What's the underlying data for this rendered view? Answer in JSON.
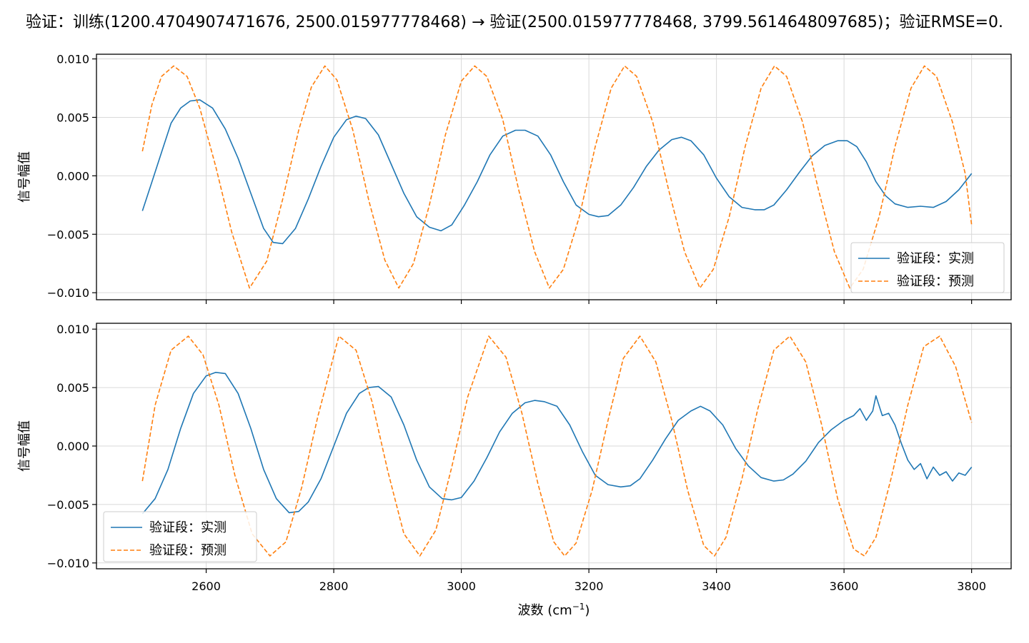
{
  "title": "验证：训练(1200.4704907471676, 2500.015977778468) → 验证(2500.015977778468, 3799.5614648097685)；验证RMSE=0.",
  "colors": {
    "measured": "#1f77b4",
    "predicted": "#ff7f0e",
    "grid": "#d9d9d9",
    "axis": "#000000"
  },
  "chart_data": [
    {
      "type": "line",
      "ylabel": "信号幅值",
      "xlim": [
        2428,
        3862
      ],
      "ylim": [
        -0.0106,
        0.0104
      ],
      "yticks": [
        -0.01,
        -0.005,
        0.0,
        0.005,
        0.01
      ],
      "ytick_labels": [
        "−0.010",
        "−0.005",
        "0.000",
        "0.005",
        "0.010"
      ],
      "xticks": [
        2600,
        2800,
        3000,
        3200,
        3400,
        3600,
        3800
      ],
      "grid": true,
      "legend_position": "lower-right",
      "series": [
        {
          "name": "验证段：实测",
          "style": "solid",
          "x": [
            2500,
            2515,
            2530,
            2545,
            2560,
            2575,
            2590,
            2610,
            2630,
            2650,
            2670,
            2690,
            2705,
            2720,
            2740,
            2760,
            2780,
            2800,
            2820,
            2835,
            2850,
            2870,
            2890,
            2910,
            2930,
            2950,
            2968,
            2985,
            3005,
            3025,
            3045,
            3065,
            3085,
            3100,
            3120,
            3140,
            3160,
            3180,
            3200,
            3215,
            3230,
            3250,
            3270,
            3290,
            3310,
            3330,
            3345,
            3360,
            3380,
            3400,
            3420,
            3440,
            3460,
            3475,
            3490,
            3510,
            3530,
            3550,
            3570,
            3590,
            3605,
            3620,
            3635,
            3650,
            3665,
            3680,
            3700,
            3720,
            3740,
            3760,
            3780,
            3800
          ],
          "y": [
            -0.003,
            -0.0005,
            0.002,
            0.0045,
            0.0058,
            0.0064,
            0.0065,
            0.0058,
            0.004,
            0.0015,
            -0.0015,
            -0.0045,
            -0.0057,
            -0.0058,
            -0.0045,
            -0.002,
            0.0008,
            0.0033,
            0.0048,
            0.0051,
            0.0049,
            0.0035,
            0.001,
            -0.0015,
            -0.0035,
            -0.0044,
            -0.0047,
            -0.0042,
            -0.0025,
            -0.0005,
            0.0018,
            0.0034,
            0.0039,
            0.0039,
            0.0034,
            0.0018,
            -0.0005,
            -0.0025,
            -0.0033,
            -0.0035,
            -0.0034,
            -0.0025,
            -0.001,
            0.0008,
            0.0022,
            0.0031,
            0.0033,
            0.003,
            0.0018,
            -0.0002,
            -0.0018,
            -0.0027,
            -0.0029,
            -0.0029,
            -0.0025,
            -0.0012,
            0.0003,
            0.0017,
            0.0026,
            0.003,
            0.003,
            0.0025,
            0.0012,
            -0.0005,
            -0.0017,
            -0.0024,
            -0.0027,
            -0.0026,
            -0.0027,
            -0.0022,
            -0.0012,
            0.0002
          ]
        },
        {
          "name": "验证段：预测",
          "style": "dashed",
          "x": [
            2500,
            2515,
            2530,
            2549,
            2570,
            2590,
            2615,
            2640,
            2668,
            2695,
            2720,
            2745,
            2765,
            2786,
            2805,
            2830,
            2855,
            2880,
            2902,
            2925,
            2950,
            2975,
            3000,
            3021,
            3040,
            3065,
            3090,
            3115,
            3138,
            3160,
            3185,
            3210,
            3235,
            3256,
            3275,
            3300,
            3325,
            3350,
            3374,
            3395,
            3420,
            3445,
            3470,
            3491,
            3510,
            3535,
            3560,
            3585,
            3609,
            3630,
            3655,
            3680,
            3705,
            3726,
            3745,
            3770,
            3790,
            3800
          ],
          "y": [
            0.0021,
            0.0061,
            0.0085,
            0.0094,
            0.0085,
            0.0058,
            0.0008,
            -0.0048,
            -0.0096,
            -0.0073,
            -0.002,
            0.0039,
            0.0076,
            0.0094,
            0.0082,
            0.0039,
            -0.0021,
            -0.0072,
            -0.0096,
            -0.0075,
            -0.0025,
            0.0035,
            0.0081,
            0.0094,
            0.0085,
            0.0048,
            -0.0012,
            -0.0065,
            -0.0096,
            -0.008,
            -0.0035,
            0.0025,
            0.0075,
            0.0094,
            0.0085,
            0.0046,
            -0.0012,
            -0.0065,
            -0.0096,
            -0.008,
            -0.0035,
            0.0025,
            0.0075,
            0.0094,
            0.0085,
            0.0046,
            -0.0012,
            -0.0065,
            -0.0096,
            -0.008,
            -0.0035,
            0.0025,
            0.0075,
            0.0094,
            0.0085,
            0.0046,
            0.0002,
            -0.0042
          ]
        }
      ]
    },
    {
      "type": "line",
      "xlabel": "波数 (cm",
      "xlabel_sup": "−1",
      "xlabel_close": ")",
      "ylabel": "信号幅值",
      "xlim": [
        2428,
        3862
      ],
      "ylim": [
        -0.0105,
        0.0105
      ],
      "yticks": [
        -0.01,
        -0.005,
        0.0,
        0.005,
        0.01
      ],
      "ytick_labels": [
        "−0.010",
        "−0.005",
        "0.000",
        "0.005",
        "0.010"
      ],
      "xticks": [
        2600,
        2800,
        3000,
        3200,
        3400,
        3600,
        3800
      ],
      "xtick_labels": [
        "2600",
        "2800",
        "3000",
        "3200",
        "3400",
        "3600",
        "3800"
      ],
      "grid": true,
      "legend_position": "lower-left",
      "series": [
        {
          "name": "验证段：实测",
          "style": "solid",
          "x": [
            2500,
            2520,
            2540,
            2560,
            2580,
            2600,
            2615,
            2630,
            2650,
            2670,
            2690,
            2710,
            2730,
            2745,
            2760,
            2780,
            2800,
            2820,
            2840,
            2855,
            2870,
            2890,
            2910,
            2930,
            2950,
            2970,
            2985,
            3000,
            3020,
            3040,
            3060,
            3080,
            3100,
            3115,
            3130,
            3150,
            3170,
            3190,
            3210,
            3230,
            3250,
            3265,
            3280,
            3300,
            3320,
            3340,
            3360,
            3375,
            3390,
            3410,
            3430,
            3450,
            3470,
            3490,
            3505,
            3520,
            3540,
            3560,
            3580,
            3600,
            3615,
            3625,
            3635,
            3645,
            3650,
            3660,
            3670,
            3680,
            3690,
            3700,
            3710,
            3720,
            3730,
            3740,
            3750,
            3760,
            3770,
            3780,
            3790,
            3800
          ],
          "y": [
            -0.0058,
            -0.0045,
            -0.002,
            0.0015,
            0.0045,
            0.006,
            0.0063,
            0.0062,
            0.0045,
            0.0015,
            -0.002,
            -0.0045,
            -0.0057,
            -0.0056,
            -0.0048,
            -0.0028,
            0.0,
            0.0028,
            0.0045,
            0.005,
            0.0051,
            0.0042,
            0.0018,
            -0.0012,
            -0.0035,
            -0.0045,
            -0.0046,
            -0.0044,
            -0.003,
            -0.001,
            0.0012,
            0.0028,
            0.0037,
            0.0039,
            0.0038,
            0.0034,
            0.0018,
            -0.0005,
            -0.0025,
            -0.0033,
            -0.0035,
            -0.0034,
            -0.0028,
            -0.0012,
            0.0006,
            0.0022,
            0.003,
            0.0034,
            0.003,
            0.0018,
            -0.0002,
            -0.0017,
            -0.0027,
            -0.003,
            -0.0029,
            -0.0024,
            -0.0013,
            0.0003,
            0.0014,
            0.0022,
            0.0026,
            0.0032,
            0.0022,
            0.003,
            0.0043,
            0.0026,
            0.0028,
            0.0018,
            0.0002,
            -0.0012,
            -0.002,
            -0.0015,
            -0.0028,
            -0.0018,
            -0.0025,
            -0.0022,
            -0.003,
            -0.0023,
            -0.0025,
            -0.0018
          ]
        },
        {
          "name": "验证段：预测",
          "style": "dashed",
          "x": [
            2500,
            2520,
            2545,
            2572,
            2595,
            2620,
            2645,
            2672,
            2700,
            2725,
            2750,
            2775,
            2808,
            2835,
            2860,
            2885,
            2910,
            2935,
            2960,
            2985,
            3010,
            3043,
            3070,
            3095,
            3120,
            3145,
            3162,
            3180,
            3205,
            3230,
            3254,
            3280,
            3305,
            3330,
            3355,
            3380,
            3397,
            3415,
            3440,
            3465,
            3490,
            3515,
            3540,
            3565,
            3590,
            3615,
            3632,
            3650,
            3675,
            3700,
            3725,
            3750,
            3775,
            3800
          ],
          "y": [
            -0.003,
            0.0035,
            0.0082,
            0.0094,
            0.0078,
            0.0035,
            -0.0025,
            -0.0075,
            -0.0094,
            -0.0082,
            -0.0035,
            0.0025,
            0.0094,
            0.0082,
            0.0038,
            -0.0022,
            -0.0075,
            -0.0094,
            -0.0072,
            -0.0018,
            0.0042,
            0.0094,
            0.0076,
            0.0028,
            -0.0032,
            -0.0082,
            -0.0094,
            -0.0083,
            -0.0038,
            0.0022,
            0.0075,
            0.0094,
            0.0072,
            0.0022,
            -0.0038,
            -0.0085,
            -0.0094,
            -0.0078,
            -0.0028,
            0.0032,
            0.0082,
            0.0094,
            0.0072,
            0.0018,
            -0.0045,
            -0.0088,
            -0.0094,
            -0.0078,
            -0.0025,
            0.0035,
            0.0085,
            0.0094,
            0.0068,
            0.002
          ]
        }
      ]
    }
  ]
}
